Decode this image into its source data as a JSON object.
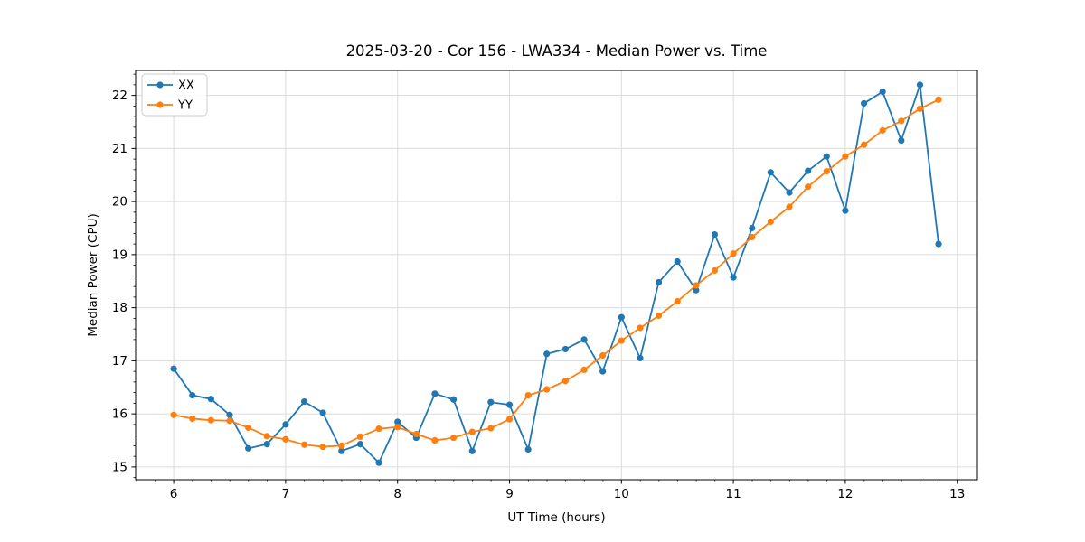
{
  "chart_data": {
    "type": "line",
    "title": "2025-03-20 - Cor 156 - LWA334 - Median Power vs. Time",
    "xlabel": "UT Time (hours)",
    "ylabel": "Median Power (CPU)",
    "xlim": [
      5.66,
      13.18
    ],
    "ylim": [
      14.76,
      22.47
    ],
    "xticks": [
      6,
      7,
      8,
      9,
      10,
      11,
      12,
      13
    ],
    "yticks": [
      15,
      16,
      17,
      18,
      19,
      20,
      21,
      22
    ],
    "x_minor_step": 0.1667,
    "y_minor_step": 0.2,
    "grid": true,
    "legend_position": "upper left",
    "background_color": "#ffffff",
    "grid_color": "#dcdcdc",
    "x": [
      6.0,
      6.167,
      6.333,
      6.5,
      6.667,
      6.833,
      7.0,
      7.167,
      7.333,
      7.5,
      7.667,
      7.833,
      8.0,
      8.167,
      8.333,
      8.5,
      8.667,
      8.833,
      9.0,
      9.167,
      9.333,
      9.5,
      9.667,
      9.833,
      10.0,
      10.167,
      10.333,
      10.5,
      10.667,
      10.833,
      11.0,
      11.167,
      11.333,
      11.5,
      11.667,
      11.833,
      12.0,
      12.167,
      12.333,
      12.5,
      12.667,
      12.833
    ],
    "series": [
      {
        "name": "XX",
        "color": "#1f77b4",
        "values": [
          16.85,
          16.35,
          16.28,
          15.98,
          15.35,
          15.43,
          15.8,
          16.23,
          16.02,
          15.3,
          15.43,
          15.08,
          15.85,
          15.55,
          16.38,
          16.27,
          15.3,
          16.22,
          16.17,
          15.33,
          17.13,
          17.22,
          17.4,
          16.8,
          17.82,
          17.05,
          18.48,
          18.87,
          18.33,
          19.38,
          18.57,
          19.5,
          20.55,
          20.17,
          20.58,
          20.85,
          19.83,
          21.85,
          22.07,
          21.15,
          22.2,
          19.2
        ]
      },
      {
        "name": "YY",
        "color": "#ff7f0e",
        "values": [
          15.98,
          15.91,
          15.88,
          15.87,
          15.74,
          15.58,
          15.52,
          15.42,
          15.38,
          15.4,
          15.57,
          15.72,
          15.75,
          15.62,
          15.5,
          15.55,
          15.66,
          15.73,
          15.9,
          16.35,
          16.46,
          16.62,
          16.83,
          17.1,
          17.38,
          17.62,
          17.85,
          18.12,
          18.42,
          18.7,
          19.02,
          19.33,
          19.62,
          19.9,
          20.28,
          20.57,
          20.85,
          21.07,
          21.34,
          21.52,
          21.75,
          21.92
        ]
      }
    ]
  }
}
